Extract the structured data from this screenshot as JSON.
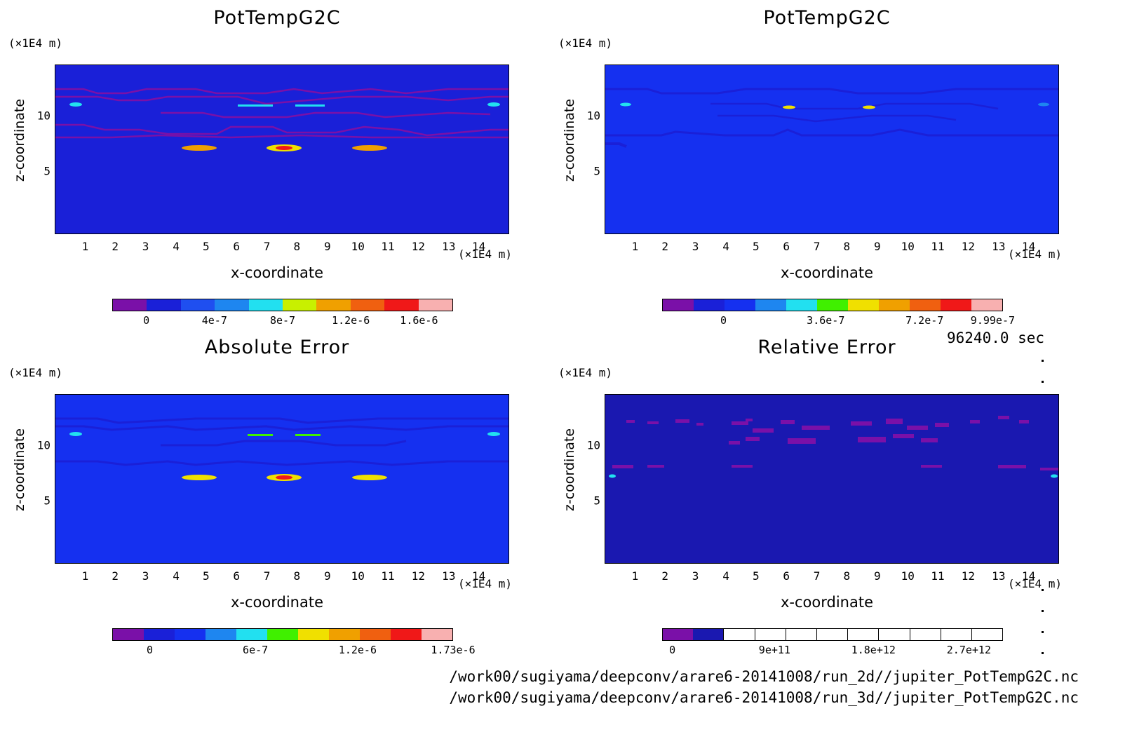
{
  "time_label": "96240.0 sec",
  "file_paths": [
    "/work00/sugiyama/deepconv/arare6-20141008/run_2d//jupiter_PotTempG2C.nc",
    "/work00/sugiyama/deepconv/arare6-20141008/run_3d//jupiter_PotTempG2C.nc"
  ],
  "chart_data": [
    {
      "type": "heatmap",
      "title": "PotTempG2C",
      "xlabel": "x-coordinate",
      "ylabel": "z-coordinate",
      "x_unit": "(×1E4 m)",
      "y_unit": "(×1E4 m)",
      "xlim": [
        0,
        15
      ],
      "ylim": [
        0,
        15
      ],
      "xticks": [
        "1",
        "2",
        "3",
        "4",
        "5",
        "6",
        "7",
        "8",
        "9",
        "10",
        "11",
        "12",
        "13",
        "14"
      ],
      "yticks": [
        "5",
        "10"
      ],
      "background_color": "#1a20d8",
      "colorbar_colors": [
        "#7a10a8",
        "#1a20d8",
        "#1f4ff0",
        "#1e86f0",
        "#22e0f0",
        "#c8f000",
        "#f0a000",
        "#f06010",
        "#f01818",
        "#f8b0b0"
      ],
      "colorbar_labels": [
        "0",
        "4e-7",
        "8e-7",
        "1.2e-6",
        "1.6e-6"
      ]
    },
    {
      "type": "heatmap",
      "title": "PotTempG2C",
      "xlabel": "x-coordinate",
      "ylabel": "z-coordinate",
      "x_unit": "(×1E4 m)",
      "y_unit": "(×1E4 m)",
      "xlim": [
        0,
        15
      ],
      "ylim": [
        0,
        15
      ],
      "xticks": [
        "1",
        "2",
        "3",
        "4",
        "5",
        "6",
        "7",
        "8",
        "9",
        "10",
        "11",
        "12",
        "13",
        "14"
      ],
      "yticks": [
        "5",
        "10"
      ],
      "background_color": "#1530f0",
      "colorbar_colors": [
        "#7a10a8",
        "#1a20d8",
        "#1530f0",
        "#1e86f0",
        "#22e0f0",
        "#40f000",
        "#f0e000",
        "#f0a000",
        "#f06010",
        "#f01818",
        "#f8b0b0"
      ],
      "colorbar_labels": [
        "0",
        "3.6e-7",
        "7.2e-7",
        "9.99e-7"
      ]
    },
    {
      "type": "heatmap",
      "title": "Absolute Error",
      "xlabel": "x-coordinate",
      "ylabel": "z-coordinate",
      "x_unit": "(×1E4 m)",
      "y_unit": "(×1E4 m)",
      "xlim": [
        0,
        15
      ],
      "ylim": [
        0,
        15
      ],
      "xticks": [
        "1",
        "2",
        "3",
        "4",
        "5",
        "6",
        "7",
        "8",
        "9",
        "10",
        "11",
        "12",
        "13",
        "14"
      ],
      "yticks": [
        "5",
        "10"
      ],
      "background_color": "#1530f0",
      "colorbar_colors": [
        "#7a10a8",
        "#1a20d8",
        "#1530f0",
        "#1e86f0",
        "#22e0f0",
        "#40f000",
        "#f0e000",
        "#f0a000",
        "#f06010",
        "#f01818",
        "#f8b0b0"
      ],
      "colorbar_labels": [
        "0",
        "6e-7",
        "1.2e-6",
        "1.73e-6"
      ]
    },
    {
      "type": "heatmap",
      "title": "Relative Error",
      "xlabel": "x-coordinate",
      "ylabel": "z-coordinate",
      "x_unit": "(×1E4 m)",
      "y_unit": "(×1E4 m)",
      "xlim": [
        0,
        15
      ],
      "ylim": [
        0,
        15
      ],
      "xticks": [
        "1",
        "2",
        "3",
        "4",
        "5",
        "6",
        "7",
        "8",
        "9",
        "10",
        "11",
        "12",
        "13",
        "14"
      ],
      "yticks": [
        "5",
        "10"
      ],
      "background_color": "#1a18b0",
      "colorbar_colors": [
        "#7a10a8",
        "#1a18b0",
        "#ffffff",
        "#ffffff",
        "#ffffff",
        "#ffffff",
        "#ffffff",
        "#ffffff",
        "#ffffff",
        "#ffffff",
        "#ffffff"
      ],
      "colorbar_labels": [
        "0",
        "9e+11",
        "1.8e+12",
        "2.7e+12"
      ]
    }
  ]
}
